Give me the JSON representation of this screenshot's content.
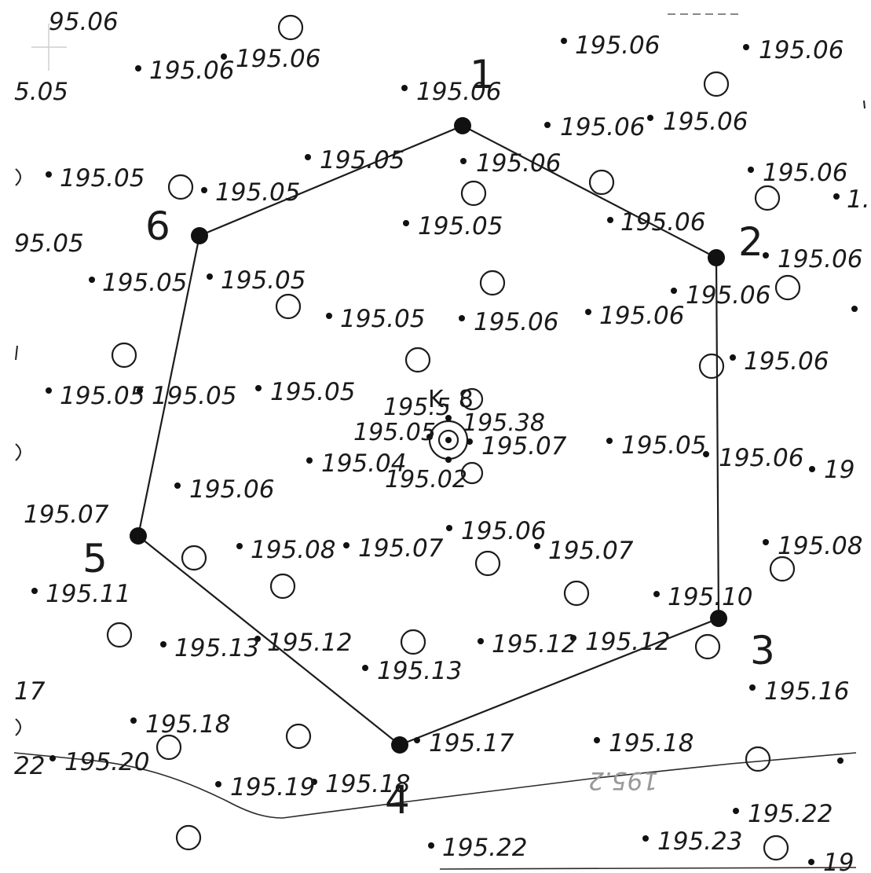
{
  "labels": {
    "l1": "95.06",
    "l2": "195.06",
    "l3": "195.06",
    "l4": "5.05",
    "l5": "195.06",
    "l6": "195.06",
    "l7": "195.06",
    "l8": "195.06",
    "l9": "195.06",
    "l10": "195.05",
    "l11": "195.06",
    "l12": "195.06",
    "l13": "195.05",
    "l14": "195.05",
    "l15": "1.",
    "l16": "195.05",
    "l17": "195.06",
    "l18": "95.05",
    "l19": "195.06",
    "l20": "195.05",
    "l21": "195.05",
    "l22": "195.06",
    "l23": "195.05",
    "l24": "195.06",
    "l25": "195.06",
    "l26": "195.06",
    "l27": "195.05",
    "l28": "195.05",
    "l29": "195.05",
    "l30": "195.5",
    "l31": "195.38",
    "l32": "195.05",
    "l33": "195.07",
    "l34": "195.05",
    "l35": "195.06",
    "l36": "19",
    "l37": "195.04",
    "l38": "195.02",
    "l39": "195.06",
    "l40": "195.07",
    "l41": "195.06",
    "l42": "195.08",
    "l43": "195.07",
    "l44": "195.07",
    "l45": "195.08",
    "l46": "195.11",
    "l47": "195.10",
    "l48": "195.13",
    "l49": "195.12",
    "l50": "195.12",
    "l51": "195.12",
    "l52": "195.13",
    "l53": "17",
    "l54": "195.16",
    "l55": "195.18",
    "l56": "195.17",
    "l57": "195.18",
    "l58": "195.20",
    "l59": "22",
    "l60": "195.19",
    "l61": "195.18",
    "l62": "195.2",
    "l63": "195.22",
    "l64": "195.22",
    "l65": "195.23",
    "l66": "19",
    "l67": "K. 8"
  },
  "vertices": [
    "1",
    "2",
    "3",
    "4",
    "5",
    "6"
  ]
}
